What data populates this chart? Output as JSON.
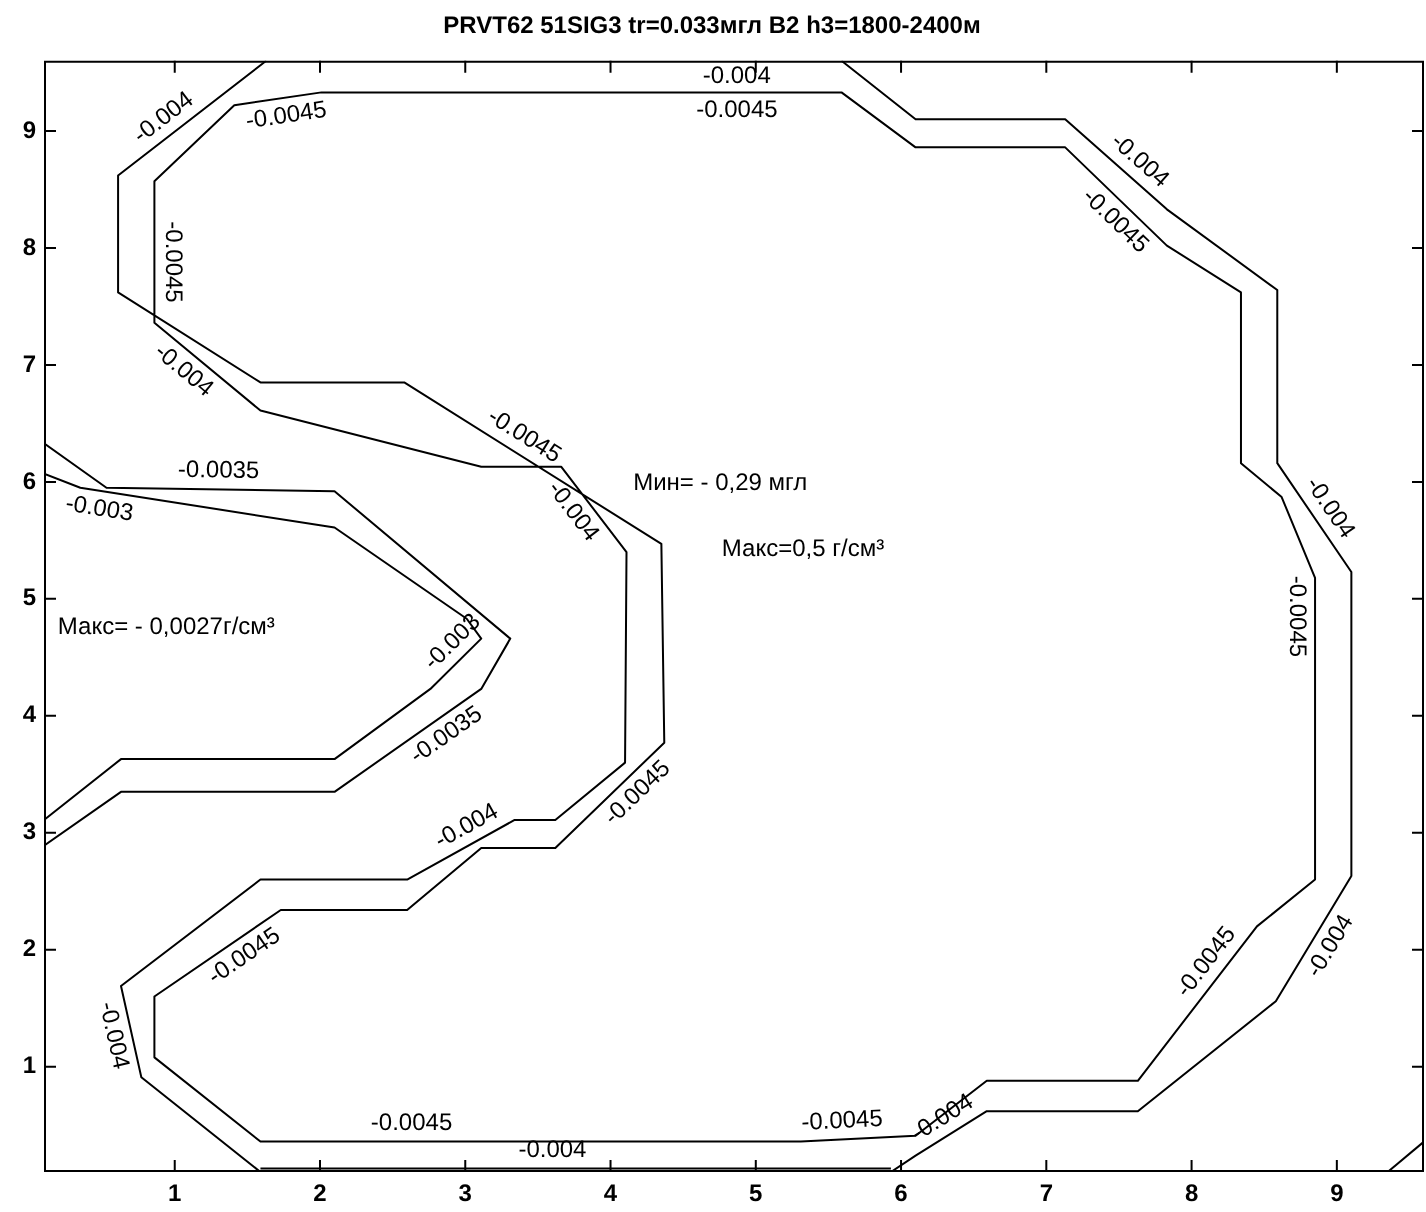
{
  "chart_data": {
    "type": "line",
    "title": "PRVT62 51SIG3 tr=0.033мгл B2 h3=1800-2400м",
    "xlim": [
      0.1,
      9.6
    ],
    "ylim": [
      0.1,
      9.6
    ],
    "xticks": [
      1,
      2,
      3,
      4,
      5,
      6,
      7,
      8,
      9
    ],
    "yticks": [
      1,
      2,
      3,
      4,
      5,
      6,
      7,
      8,
      9
    ],
    "grid": false,
    "legend": false,
    "marker": "none",
    "line_style": "solid",
    "series": [
      {
        "color": "#000000",
        "x": [
          1.63,
          0.61,
          0.61,
          1.59,
          2.58,
          4.35,
          4.37,
          3.62,
          3.11,
          2.6,
          1.73,
          0.86,
          0.86,
          1.59,
          5.31,
          6.1,
          6.59,
          7.63,
          8.45,
          8.85,
          8.85,
          8.62,
          8.34,
          8.34,
          7.83,
          7.13,
          6.1,
          5.59,
          2.01,
          1.41,
          0.86,
          0.86,
          1.59,
          3.11,
          3.66,
          4.11,
          4.1,
          3.62,
          3.34,
          2.6,
          1.59,
          0.63,
          0.77,
          1.59
        ],
        "values": [
          9.6,
          8.62,
          7.62,
          6.85,
          6.85,
          5.47,
          3.77,
          2.87,
          2.87,
          2.34,
          2.34,
          1.6,
          1.08,
          0.36,
          0.36,
          0.41,
          0.88,
          0.88,
          2.2,
          2.6,
          5.18,
          5.87,
          6.16,
          7.62,
          8.02,
          8.86,
          8.86,
          9.33,
          9.33,
          9.22,
          8.57,
          7.36,
          6.61,
          6.13,
          6.13,
          5.4,
          3.6,
          3.11,
          3.11,
          2.6,
          2.6,
          1.69,
          0.91,
          0.1
        ]
      },
      {
        "color": "#000000",
        "x": [
          5.59,
          6.1,
          7.13,
          7.83,
          8.59,
          8.59,
          9.1,
          9.1,
          8.58,
          7.63,
          6.59,
          6.1,
          5.93
        ],
        "values": [
          9.6,
          9.1,
          9.1,
          8.33,
          7.64,
          6.16,
          5.23,
          2.63,
          1.56,
          0.62,
          0.62,
          0.24,
          0.1
        ]
      },
      {
        "color": "#000000",
        "x": [
          9.35,
          9.6
        ],
        "values": [
          0.1,
          0.36
        ]
      },
      {
        "color": "#000000",
        "x": [
          0.1,
          0.53,
          2.1,
          3.31,
          3.11,
          2.1,
          0.63,
          0.1
        ],
        "values": [
          6.33,
          5.95,
          5.92,
          4.66,
          4.23,
          3.35,
          3.35,
          2.89
        ]
      },
      {
        "color": "#000000",
        "x": [
          0.1,
          0.35,
          2.1,
          3.01,
          3.11,
          2.76,
          2.1,
          0.63,
          0.1
        ],
        "values": [
          6.07,
          5.95,
          5.61,
          4.83,
          4.66,
          4.23,
          3.63,
          3.63,
          3.11
        ]
      },
      {
        "color": "#000000",
        "x": [
          1.59,
          5.93
        ],
        "values": [
          0.13,
          0.13
        ]
      }
    ],
    "annotations": [
      {
        "text": "-0.004",
        "x": 1.0,
        "y": 8.99
      },
      {
        "text": "-0.0045",
        "x": 1.75,
        "y": 9.28
      },
      {
        "text": "-0.0045",
        "x": 4.87,
        "y": 9.33
      },
      {
        "text": "-0.0045",
        "x": 0.86,
        "y": 7.88
      },
      {
        "text": "-0.004",
        "x": 1.14,
        "y": 7.07
      },
      {
        "text": "-0.0045",
        "x": 3.34,
        "y": 6.26
      },
      {
        "text": "-0.004",
        "x": 3.84,
        "y": 5.84
      },
      {
        "text": "-0.0035",
        "x": 1.3,
        "y": 5.94
      },
      {
        "text": "-0.003",
        "x": 0.5,
        "y": 5.92
      },
      {
        "text": "-0.003",
        "x": 3.0,
        "y": 4.52
      },
      {
        "text": "-0.0035",
        "x": 2.8,
        "y": 3.96
      },
      {
        "text": "-0.0045",
        "x": 4.1,
        "y": 3.45
      },
      {
        "text": "-0.004",
        "x": 3.07,
        "y": 2.92
      },
      {
        "text": "-0.0045",
        "x": 1.41,
        "y": 2.07
      },
      {
        "text": "-0.004",
        "x": 0.7,
        "y": 1.3
      },
      {
        "text": "-0.0045",
        "x": 2.63,
        "y": 0.36
      },
      {
        "text": "-0.004",
        "x": 3.6,
        "y": 0.13
      },
      {
        "text": "-0.0045",
        "x": 5.6,
        "y": 0.38
      },
      {
        "text": "-0.004",
        "x": 6.35,
        "y": 0.43
      },
      {
        "text": "-0.0045",
        "x": 8.2,
        "y": 1.8
      },
      {
        "text": "-0.004",
        "x": 8.85,
        "y": 2.11
      },
      {
        "text": "-0.004",
        "x": 7.56,
        "y": 8.63
      },
      {
        "text": "-0.0045",
        "x": 7.56,
        "y": 8.34
      },
      {
        "text": "-0.004",
        "x": 8.85,
        "y": 5.69
      },
      {
        "text": "-0.0045",
        "x": 8.85,
        "y": 4.85
      },
      "Мин= - 0,29 мгл",
      "Макс=0,5 г/см³",
      "Макс= - 0,0027г/см³",
      "-0.004"
    ]
  }
}
